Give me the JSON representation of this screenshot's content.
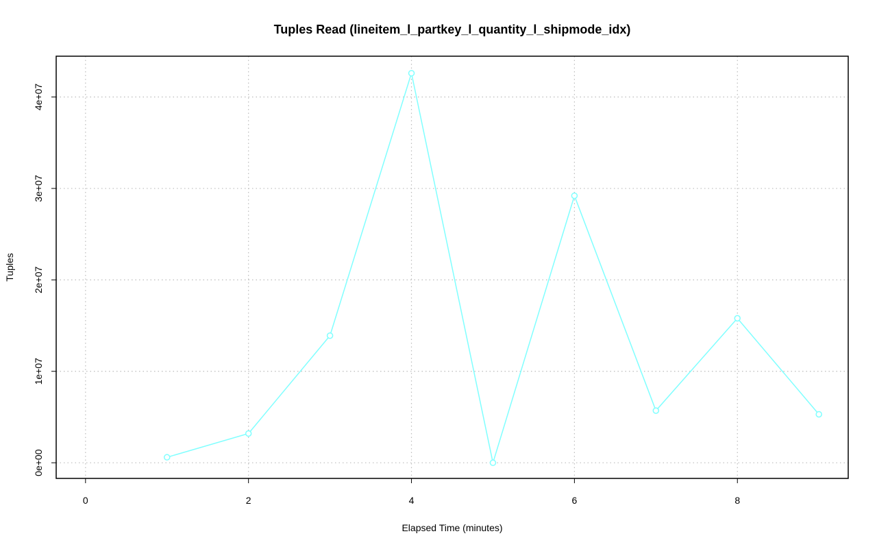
{
  "chart_data": {
    "type": "line",
    "title": "Tuples Read (lineitem_l_partkey_l_quantity_l_shipmode_idx)",
    "x_label": "Elapsed Time (minutes)",
    "y_label": "Tuples",
    "x": [
      1,
      2,
      3,
      4,
      5,
      6,
      7,
      8,
      9
    ],
    "values": [
      600000,
      3200000,
      13900000,
      42600000,
      0,
      29200000,
      5700000,
      15800000,
      5300000
    ],
    "color": "#80ffff",
    "xlim": [
      -0.36,
      9.36
    ],
    "xticks": [
      0,
      2,
      4,
      6,
      8
    ],
    "ylim": [
      -1710000,
      44460000
    ],
    "yticks": [
      {
        "value": 0,
        "label": "0e+00"
      },
      {
        "value": 10000000,
        "label": "1e+07"
      },
      {
        "value": 20000000,
        "label": "2e+07"
      },
      {
        "value": 30000000,
        "label": "3e+07"
      },
      {
        "value": 40000000,
        "label": "4e+07"
      }
    ],
    "grid": true
  }
}
